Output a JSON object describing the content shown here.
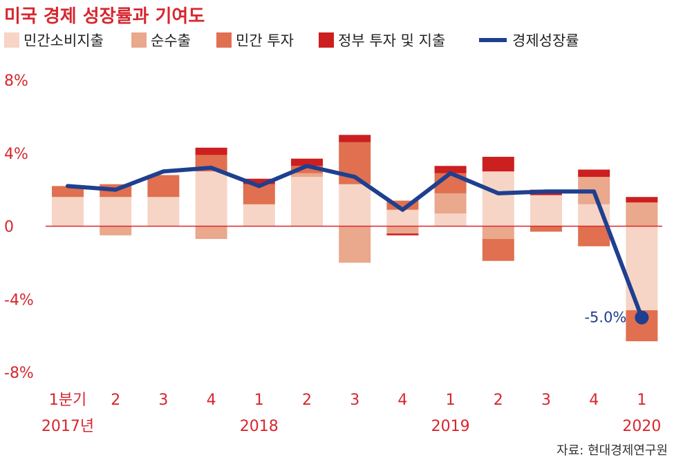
{
  "chart_data": {
    "type": "bar",
    "title": "미국 경제 성장률과 기여도",
    "categories": [
      "1분기",
      "2",
      "3",
      "4",
      "1",
      "2",
      "3",
      "4",
      "1",
      "2",
      "3",
      "4",
      "1"
    ],
    "year_labels": [
      {
        "index": 0,
        "label": "2017년"
      },
      {
        "index": 4,
        "label": "2018"
      },
      {
        "index": 8,
        "label": "2019"
      },
      {
        "index": 12,
        "label": "2020"
      }
    ],
    "series": [
      {
        "name": "민간소비지출",
        "kind": "bar",
        "color": "#f6d5c6",
        "values": [
          1.6,
          1.6,
          1.6,
          3.0,
          1.2,
          2.7,
          2.3,
          0.9,
          0.7,
          3.0,
          1.7,
          1.2,
          -4.6
        ]
      },
      {
        "name": "순수출",
        "kind": "bar",
        "color": "#eaa88d",
        "values": [
          0.0,
          -0.5,
          0.0,
          -0.7,
          0.0,
          0.2,
          -2.0,
          -0.4,
          1.1,
          -0.7,
          0.0,
          1.5,
          1.3
        ]
      },
      {
        "name": "민간 투자",
        "kind": "bar",
        "color": "#e0704f",
        "values": [
          0.6,
          0.7,
          1.2,
          0.9,
          1.1,
          0.4,
          2.3,
          0.5,
          1.1,
          -1.2,
          -0.3,
          -1.1,
          -1.7
        ]
      },
      {
        "name": "정부 투자 및 지출",
        "kind": "bar",
        "color": "#cc1f1f",
        "values": [
          0.0,
          0.0,
          0.0,
          0.4,
          0.3,
          0.4,
          0.4,
          -0.1,
          0.4,
          0.8,
          0.3,
          0.4,
          0.3
        ]
      },
      {
        "name": "경제성장률",
        "kind": "line",
        "color": "#1f3f8f",
        "values": [
          2.2,
          2.0,
          3.0,
          3.2,
          2.2,
          3.3,
          2.7,
          0.9,
          2.9,
          1.8,
          1.9,
          1.9,
          -5.0
        ]
      }
    ],
    "y_ticks": [
      {
        "value": 8,
        "label": "8%"
      },
      {
        "value": 4,
        "label": "4%"
      },
      {
        "value": 0,
        "label": "0"
      },
      {
        "value": -4,
        "label": "-4%"
      },
      {
        "value": -8,
        "label": "-8%"
      }
    ],
    "ylim": [
      -8,
      8
    ],
    "grid": false,
    "legend_position": "top",
    "annotation": {
      "index": 12,
      "text": "-5.0%"
    },
    "source": "자료: 현대경제연구원",
    "colors": {
      "accent": "#d7262e",
      "zero_line": "#d7262e",
      "line": "#1f3f8f"
    }
  }
}
